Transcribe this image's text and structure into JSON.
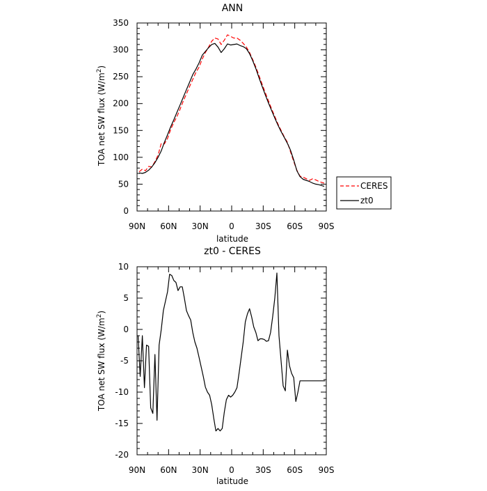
{
  "chart_data": [
    {
      "type": "line",
      "title": "ANN",
      "xlabel": "latitude",
      "ylabel": "TOA net SW flux (W/m",
      "ylabel_sup": "2",
      "ylabel_end": ")",
      "xlim": [
        90,
        -90
      ],
      "ylim": [
        0,
        350
      ],
      "xticks": [
        90,
        60,
        30,
        0,
        -30,
        -60,
        -90
      ],
      "xtick_labels": [
        "90N",
        "60N",
        "30N",
        "0",
        "30S",
        "60S",
        "90S"
      ],
      "yticks": [
        0,
        50,
        100,
        150,
        200,
        250,
        300,
        350
      ],
      "ytick_labels": [
        "0",
        "50",
        "100",
        "150",
        "200",
        "250",
        "300",
        "350"
      ],
      "grid": false,
      "legend_position": "right",
      "series": [
        {
          "name": "CERES",
          "color": "#ff0000",
          "dash": true,
          "x": [
            88,
            85,
            82,
            79,
            76,
            73,
            70,
            67,
            64,
            61,
            58,
            55,
            52,
            49,
            46,
            43,
            40,
            37,
            34,
            31,
            28,
            25,
            22,
            19,
            16,
            13,
            10,
            7,
            4,
            1,
            -2,
            -5,
            -8,
            -11,
            -14,
            -17,
            -20,
            -23,
            -26,
            -29,
            -32,
            -35,
            -38,
            -41,
            -44,
            -47,
            -50,
            -53,
            -56,
            -59,
            -62,
            -65,
            -68,
            -71,
            -74,
            -77,
            -80,
            -83,
            -86,
            -88
          ],
          "y": [
            73,
            78,
            75,
            83,
            82,
            92,
            104,
            126,
            125,
            135,
            152,
            165,
            176,
            190,
            205,
            218,
            232,
            245,
            258,
            268,
            283,
            295,
            305,
            316,
            322,
            320,
            310,
            318,
            328,
            325,
            322,
            322,
            318,
            312,
            305,
            295,
            282,
            268,
            252,
            236,
            220,
            205,
            190,
            176,
            162,
            150,
            138,
            128,
            110,
            92,
            76,
            65,
            63,
            60,
            57,
            60,
            58,
            55,
            53,
            52
          ]
        },
        {
          "name": "zt0",
          "color": "#000000",
          "dash": false,
          "x": [
            88,
            85,
            82,
            79,
            76,
            73,
            70,
            67,
            64,
            61,
            58,
            55,
            52,
            49,
            46,
            43,
            40,
            37,
            34,
            31,
            28,
            25,
            22,
            19,
            16,
            13,
            10,
            7,
            4,
            1,
            -2,
            -5,
            -8,
            -11,
            -14,
            -17,
            -20,
            -23,
            -26,
            -29,
            -32,
            -35,
            -38,
            -41,
            -44,
            -47,
            -50,
            -53,
            -56,
            -59,
            -62,
            -65,
            -68,
            -71,
            -74,
            -77,
            -80,
            -83,
            -86,
            -88
          ],
          "y": [
            71,
            70,
            72,
            76,
            82,
            90,
            100,
            112,
            128,
            142,
            157,
            170,
            184,
            198,
            212,
            226,
            240,
            254,
            264,
            276,
            290,
            297,
            304,
            310,
            312,
            305,
            295,
            302,
            311,
            309,
            310,
            311,
            308,
            306,
            302,
            293,
            280,
            265,
            248,
            232,
            216,
            201,
            187,
            173,
            160,
            148,
            137,
            126,
            113,
            95,
            75,
            64,
            59,
            57,
            55,
            52,
            50,
            49,
            47,
            46
          ]
        }
      ]
    },
    {
      "type": "line",
      "title": "zt0 - CERES",
      "xlabel": "latitude",
      "ylabel": "TOA net SW flux (W/m",
      "ylabel_sup": "2",
      "ylabel_end": ")",
      "xlim": [
        90,
        -90
      ],
      "ylim": [
        -20,
        10
      ],
      "xticks": [
        90,
        60,
        30,
        0,
        -30,
        -60,
        -90
      ],
      "xtick_labels": [
        "90N",
        "60N",
        "30N",
        "0",
        "30S",
        "60S",
        "90S"
      ],
      "yticks": [
        -20,
        -15,
        -10,
        -5,
        0,
        5,
        10
      ],
      "ytick_labels": [
        "-20",
        "-15",
        "-10",
        "-5",
        "0",
        "5",
        "10"
      ],
      "grid": false,
      "series": [
        {
          "color": "#000000",
          "dash": false,
          "x": [
            89,
            87,
            85,
            83,
            81,
            79,
            77,
            75,
            73,
            71,
            69,
            67,
            65,
            63,
            61,
            59,
            57,
            55,
            53,
            51,
            49,
            47,
            45,
            43,
            41,
            39,
            37,
            35,
            33,
            31,
            29,
            27,
            25,
            23,
            21,
            19,
            17,
            15,
            13,
            11,
            9,
            7,
            5,
            3,
            1,
            -1,
            -3,
            -5,
            -7,
            -9,
            -11,
            -13,
            -15,
            -17,
            -19,
            -21,
            -23,
            -25,
            -27,
            -29,
            -31,
            -33,
            -35,
            -37,
            -39,
            -41,
            -43,
            -45,
            -47,
            -49,
            -51,
            -53,
            -55,
            -57,
            -59,
            -61,
            -63,
            -65,
            -67,
            -69,
            -71,
            -73,
            -75,
            -77,
            -79,
            -81,
            -83,
            -85,
            -87,
            -89
          ],
          "y": [
            -1,
            -7.5,
            -1,
            -9.3,
            -2.5,
            -2.7,
            -12.5,
            -13.4,
            -4,
            -14.5,
            -2.5,
            0,
            3,
            4.5,
            6,
            8.8,
            8.6,
            7.8,
            7.5,
            6.2,
            6.8,
            6.8,
            5,
            3,
            2.2,
            1.5,
            -0.5,
            -2,
            -3,
            -4.5,
            -6,
            -7.5,
            -9.2,
            -10,
            -10.5,
            -12,
            -14.2,
            -16.2,
            -15.8,
            -16.2,
            -15.8,
            -13.2,
            -11.2,
            -10.5,
            -10.8,
            -10.5,
            -10,
            -9.3,
            -7,
            -4.5,
            -2,
            1.2,
            2.5,
            3.3,
            2,
            0.4,
            -0.5,
            -1.8,
            -1.5,
            -1.5,
            -1.6,
            -1.9,
            -1.8,
            -0.5,
            2,
            5,
            9,
            -1,
            -5,
            -9,
            -9.8,
            -3.3,
            -5.8,
            -7,
            -7.7,
            -11.5,
            -10,
            -8.2,
            -8.2,
            -8.2,
            -8.2,
            -8.2,
            -8.2,
            -8.2,
            -8.2,
            -8.2,
            -8.2,
            -8.2,
            -8.2,
            -8.2
          ]
        }
      ]
    }
  ]
}
